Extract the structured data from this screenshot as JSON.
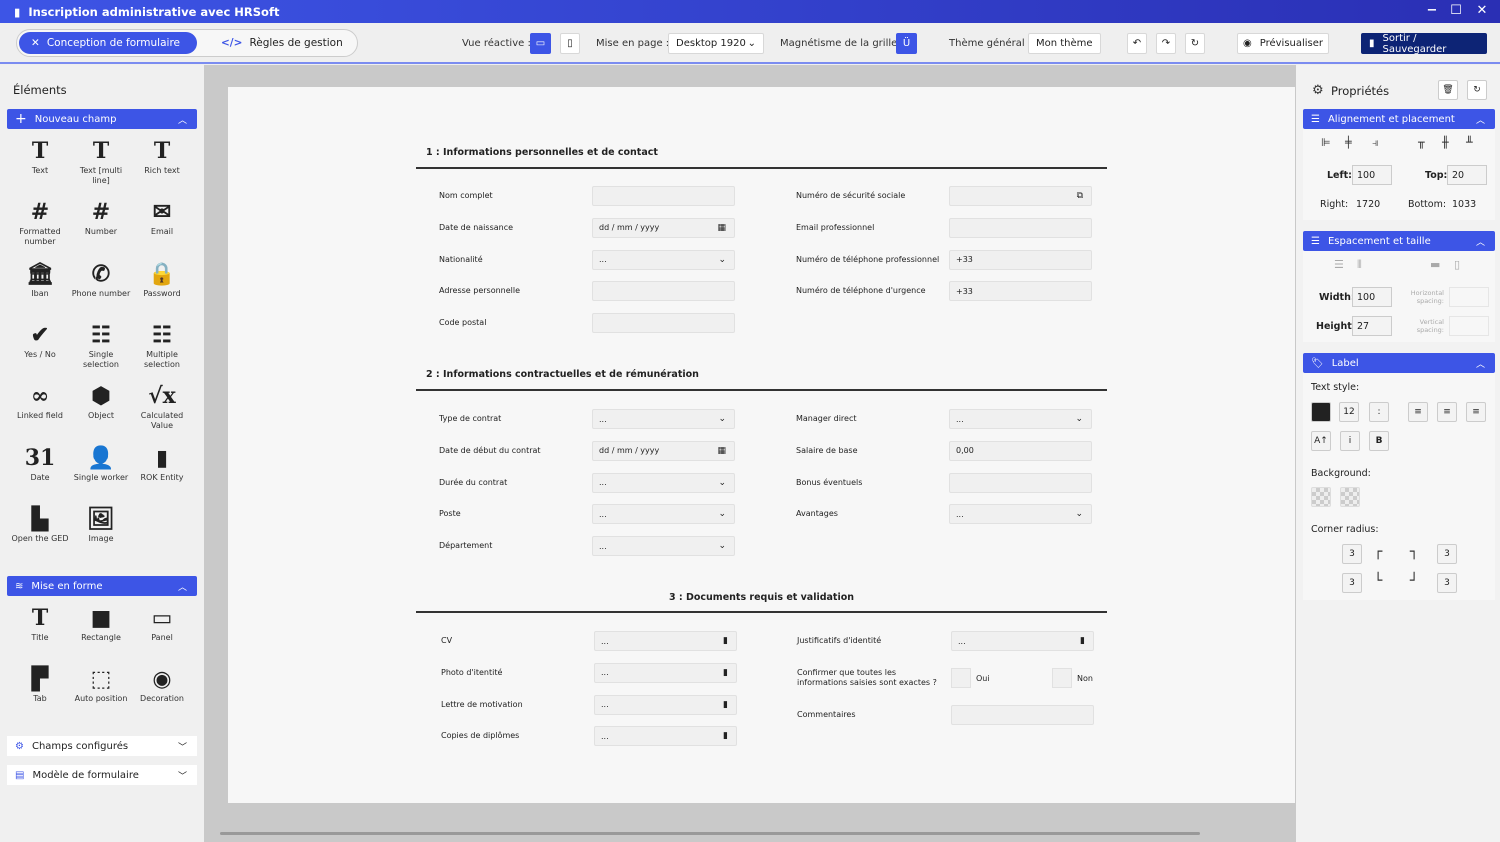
{
  "window": {
    "title": "Inscription administrative avec HRSoft",
    "minimize": "−",
    "maximize": "☐",
    "close": "✕"
  },
  "toolbar": {
    "tab_design": "Conception de formulaire",
    "tab_rules": "Règles de gestion",
    "responsive_label": "Vue réactive :",
    "layout_label": "Mise en page :",
    "layout_value": "Desktop 1920",
    "magnet_label": "Magnétisme de la grille :",
    "theme_label": "Thème général :",
    "theme_value": "Mon thème",
    "preview": "Prévisualiser",
    "exit_save": "Sortir / Sauvegarder"
  },
  "left": {
    "title": "Éléments",
    "new_field": "Nouveau champ",
    "fields": [
      {
        "icon": "T",
        "label": "Text"
      },
      {
        "icon": "T",
        "label": "Text [multi line]"
      },
      {
        "icon": "T",
        "label": "Rich text"
      },
      {
        "icon": "#",
        "label": "Formatted number"
      },
      {
        "icon": "#",
        "label": "Number"
      },
      {
        "icon": "✉",
        "label": "Email"
      },
      {
        "icon": "🏛",
        "label": "Iban"
      },
      {
        "icon": "✆",
        "label": "Phone number"
      },
      {
        "icon": "🔒",
        "label": "Password"
      },
      {
        "icon": "✔",
        "label": "Yes / No"
      },
      {
        "icon": "☷",
        "label": "Single selection"
      },
      {
        "icon": "☷",
        "label": "Multiple selection"
      },
      {
        "icon": "∞",
        "label": "Linked field"
      },
      {
        "icon": "⬢",
        "label": "Object"
      },
      {
        "icon": "√x",
        "label": "Calculated Value"
      },
      {
        "icon": "31",
        "label": "Date"
      },
      {
        "icon": "👤",
        "label": "Single worker"
      },
      {
        "icon": "▮",
        "label": "ROK Entity"
      },
      {
        "icon": "▙",
        "label": "Open the GED"
      },
      {
        "icon": "🖼",
        "label": "Image"
      }
    ],
    "format": "Mise en forme",
    "format_items": [
      {
        "icon": "T",
        "label": "Title"
      },
      {
        "icon": "■",
        "label": "Rectangle"
      },
      {
        "icon": "▭",
        "label": "Panel"
      },
      {
        "icon": "▛",
        "label": "Tab"
      },
      {
        "icon": "⬚",
        "label": "Auto position"
      },
      {
        "icon": "◉",
        "label": "Decoration"
      }
    ],
    "configured": "Champs configurés",
    "template": "Modèle de formulaire"
  },
  "form": {
    "sections": [
      {
        "title": "1 : Informations personnelles et de contact",
        "left": [
          {
            "label": "Nom complet",
            "value": "",
            "icon": ""
          },
          {
            "label": "Date de naissance",
            "value": "dd / mm / yyyy",
            "icon": "calendar"
          },
          {
            "label": "Nationalité",
            "value": "...",
            "icon": "chevron"
          },
          {
            "label": "Adresse personnelle",
            "value": "",
            "icon": ""
          },
          {
            "label": "Code postal",
            "value": "",
            "icon": ""
          }
        ],
        "right": [
          {
            "label": "Numéro de sécurité sociale",
            "value": "",
            "icon": "copy"
          },
          {
            "label": "Email professionnel",
            "value": "",
            "icon": ""
          },
          {
            "label": "Numéro de téléphone professionnel",
            "value": "+33",
            "icon": ""
          },
          {
            "label": "Numéro de téléphone d'urgence",
            "value": "+33",
            "icon": ""
          }
        ]
      },
      {
        "title": "2 : Informations contractuelles et de rémunération",
        "left": [
          {
            "label": "Type de contrat",
            "value": "...",
            "icon": "chevron"
          },
          {
            "label": "Date de début du contrat",
            "value": "dd / mm / yyyy",
            "icon": "calendar"
          },
          {
            "label": "Durée du contrat",
            "value": "...",
            "icon": "chevron"
          },
          {
            "label": "Poste",
            "value": "...",
            "icon": "chevron"
          },
          {
            "label": "Département",
            "value": "...",
            "icon": "chevron"
          }
        ],
        "right": [
          {
            "label": "Manager direct",
            "value": "...",
            "icon": "chevron"
          },
          {
            "label": "Salaire de base",
            "value": "0,00",
            "icon": ""
          },
          {
            "label": "Bonus éventuels",
            "value": "",
            "icon": ""
          },
          {
            "label": "Avantages",
            "value": "...",
            "icon": "chevron"
          }
        ]
      },
      {
        "title": "3 : Documents requis et validation",
        "left": [
          {
            "label": "CV",
            "value": "...",
            "icon": "file"
          },
          {
            "label": "Photo d'itentité",
            "value": "...",
            "icon": "file"
          },
          {
            "label": "Lettre de motivation",
            "value": "...",
            "icon": "file"
          },
          {
            "label": "Copies de diplômes",
            "value": "...",
            "icon": "file"
          }
        ],
        "right": [
          {
            "label": "Justificatifs d'identité",
            "value": "...",
            "icon": "file"
          }
        ],
        "confirm": {
          "label": "Confirmer que toutes les informations saisies sont exactes ?",
          "yes": "Oui",
          "no": "Non"
        },
        "comments": "Commentaires"
      }
    ]
  },
  "props": {
    "title": "Propriétés",
    "align_section": "Alignement et placement",
    "left_label": "Left:",
    "left_value": "100",
    "top_label": "Top:",
    "top_value": "20",
    "right_label": "Right:",
    "right_value": "1720",
    "bottom_label": "Bottom:",
    "bottom_value": "1033",
    "spacing_section": "Espacement et taille",
    "width_label": "Width:",
    "width_value": "100",
    "height_label": "Height:",
    "height_value": "27",
    "hspacing": "Horizontal spacing:",
    "vspacing": "Vertical spacing:",
    "label_section": "Label",
    "text_style": "Text style:",
    "font_size": "12",
    "colon": ":",
    "case": "A↑",
    "italic": "i",
    "bold": "B",
    "background": "Background:",
    "corner_radius": "Corner radius:",
    "radius_tl": "3",
    "radius_tr": "3",
    "radius_bl": "3",
    "radius_br": "3",
    "text_color": "#222222"
  },
  "colors": {
    "accent": "#3d55e6",
    "dark": "#0d2475"
  }
}
